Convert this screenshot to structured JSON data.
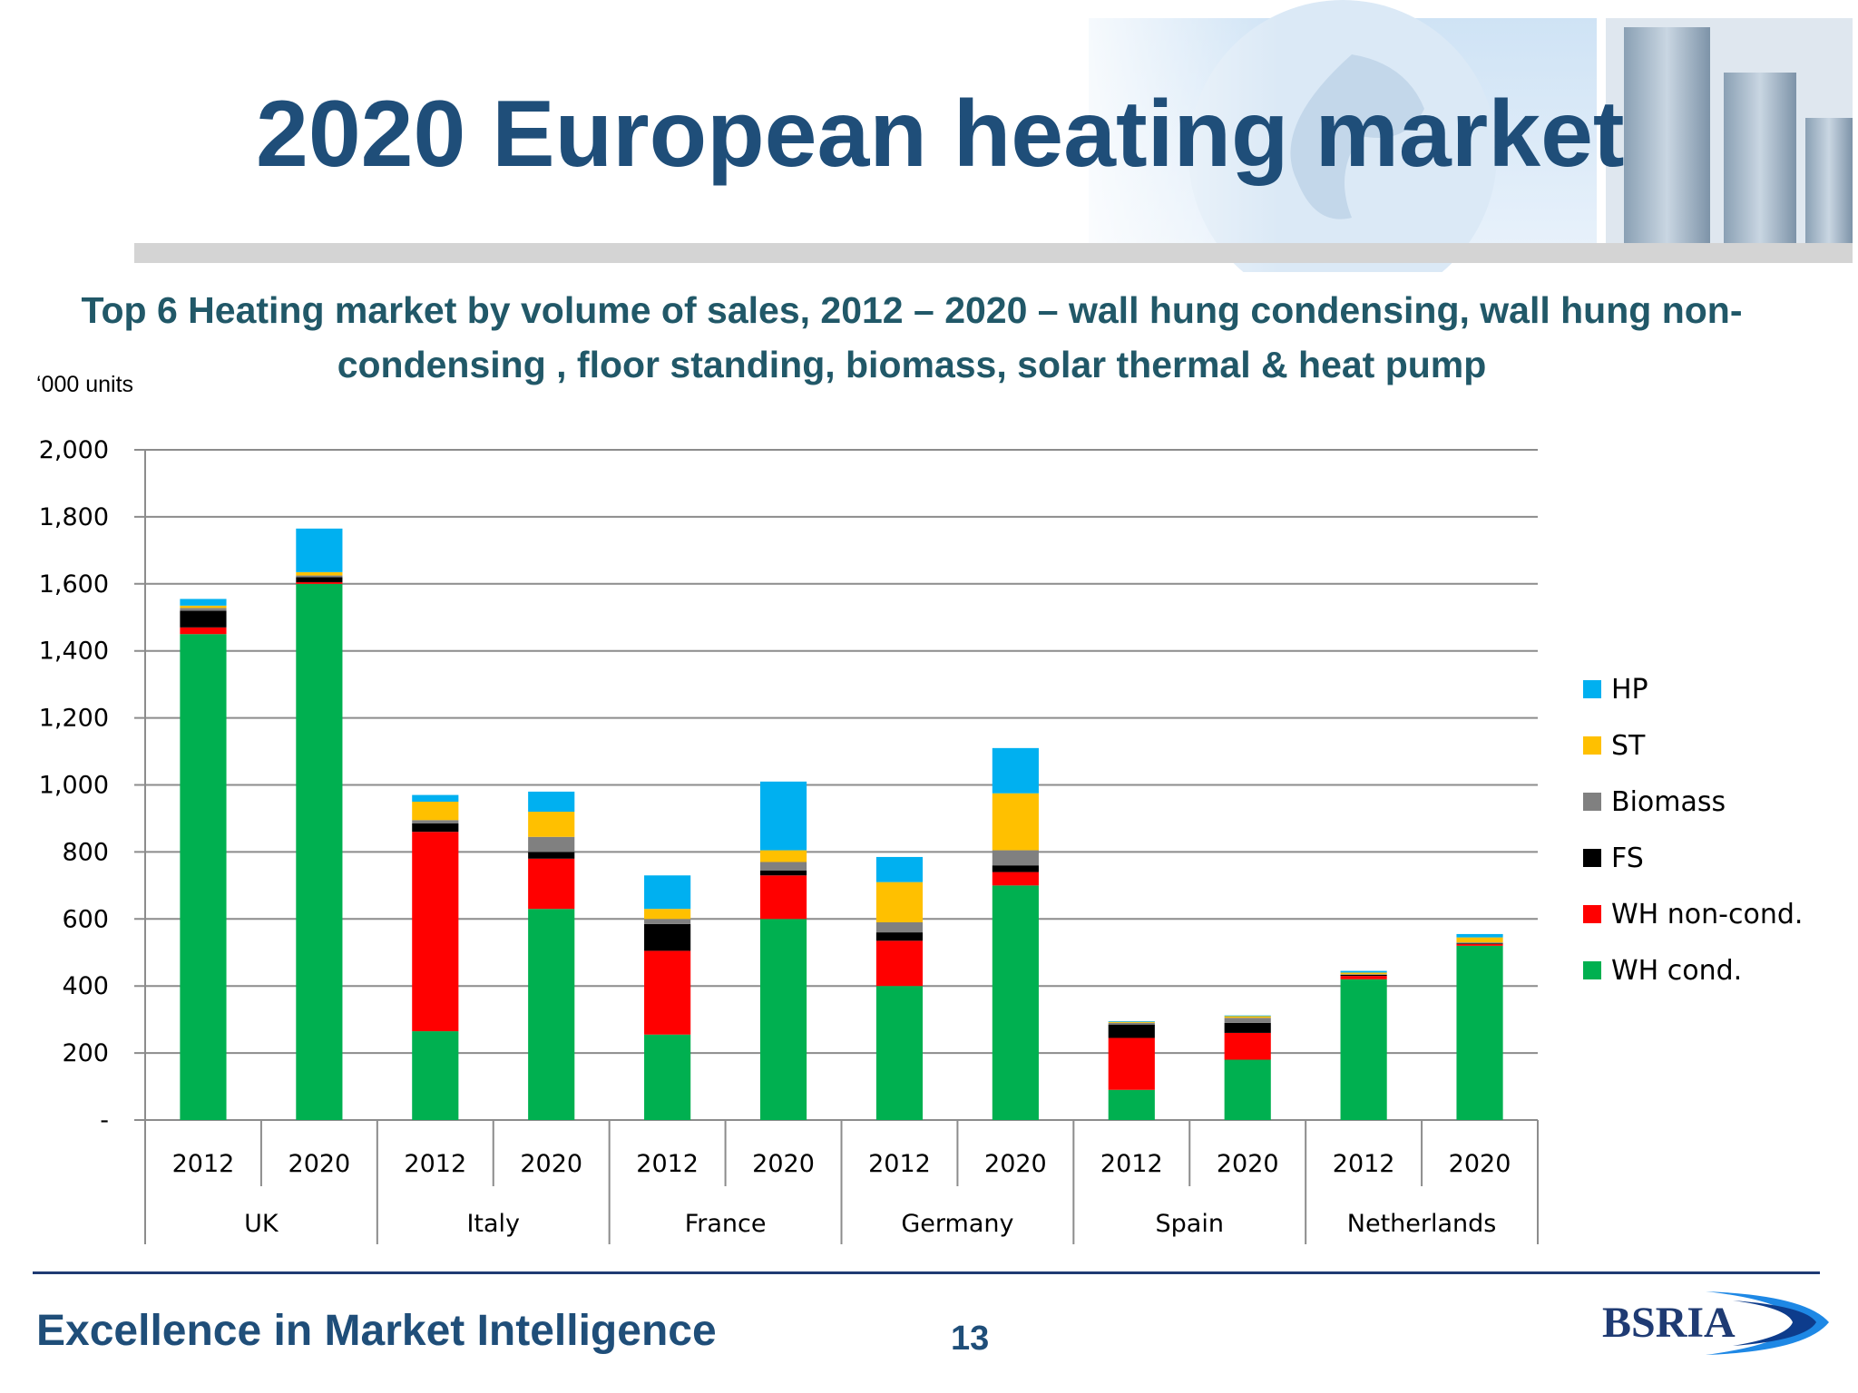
{
  "slide": {
    "title": "2020 European heating market",
    "units_label": "‘000 units",
    "footer_tagline": "Excellence in Market Intelligence",
    "page_number": "13",
    "logo_text": "BSRIA",
    "colors": {
      "title": "#1f4e79",
      "subtitle": "#215868",
      "footer": "#1f3b73"
    }
  },
  "chart_data": {
    "type": "bar",
    "stacked": true,
    "title": "Top 6 Heating market by volume of sales, 2012 – 2020 – wall hung condensing, wall hung non-condensing , floor standing, biomass, solar thermal & heat pump",
    "ylabel": "",
    "xlabel": "",
    "ylim": [
      0,
      2000
    ],
    "yticks": [
      0,
      200,
      400,
      600,
      800,
      1000,
      1200,
      1400,
      1600,
      1800,
      2000
    ],
    "ytick_labels": [
      "-",
      "200",
      "400",
      "600",
      "800",
      "1,000",
      "1,200",
      "1,400",
      "1,600",
      "1,800",
      "2,000"
    ],
    "grid": true,
    "legend_position": "right",
    "groups": [
      "UK",
      "Italy",
      "France",
      "Germany",
      "Spain",
      "Netherlands"
    ],
    "categories": [
      "2012",
      "2020",
      "2012",
      "2020",
      "2012",
      "2020",
      "2012",
      "2020",
      "2012",
      "2020",
      "2012",
      "2020"
    ],
    "series": [
      {
        "name": "WH cond.",
        "color": "#00b050",
        "values": [
          1450,
          1600,
          265,
          630,
          255,
          600,
          400,
          700,
          90,
          180,
          420,
          520
        ]
      },
      {
        "name": "WH non-cond.",
        "color": "#ff0000",
        "values": [
          20,
          5,
          595,
          150,
          250,
          130,
          135,
          40,
          155,
          80,
          10,
          5
        ]
      },
      {
        "name": "FS",
        "color": "#000000",
        "values": [
          50,
          15,
          25,
          20,
          80,
          15,
          25,
          20,
          40,
          30,
          3,
          2
        ]
      },
      {
        "name": "Biomass",
        "color": "#808080",
        "values": [
          8,
          5,
          10,
          45,
          15,
          25,
          30,
          45,
          5,
          15,
          2,
          3
        ]
      },
      {
        "name": "ST",
        "color": "#ffc000",
        "values": [
          7,
          10,
          55,
          75,
          30,
          35,
          120,
          170,
          3,
          5,
          5,
          15
        ]
      },
      {
        "name": "HP",
        "color": "#00b0f0",
        "values": [
          20,
          130,
          20,
          60,
          100,
          205,
          75,
          135,
          2,
          2,
          5,
          10
        ]
      }
    ]
  }
}
